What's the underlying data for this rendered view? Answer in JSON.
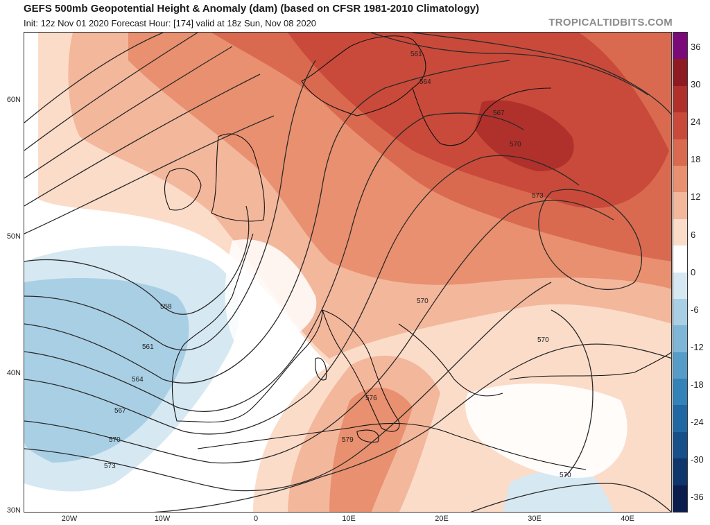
{
  "header": {
    "title": "GEFS 500mb Geopotential Height & Anomaly (dam) (based on CFSR 1981-2010 Climatology)",
    "subtitle": "Init: 12z Nov 01 2020   Forecast Hour: [174]   valid at 18z Sun, Nov 08 2020",
    "brand": "TROPICALTIDBITS.COM"
  },
  "axes": {
    "lat_labels": [
      "60N",
      "50N",
      "40N",
      "30N"
    ],
    "lon_labels": [
      "20W",
      "10W",
      "0",
      "10E",
      "20E",
      "30E",
      "40E"
    ]
  },
  "contours": {
    "labels": [
      "558",
      "561",
      "564",
      "561",
      "564",
      "567",
      "570",
      "573",
      "567",
      "570",
      "573",
      "570",
      "570",
      "576",
      "579",
      "570"
    ]
  },
  "colorbar": {
    "labels": [
      "36",
      "30",
      "24",
      "18",
      "12",
      "6",
      "0",
      "-6",
      "-12",
      "-18",
      "-24",
      "-30",
      "-36"
    ],
    "colors": [
      "#7a0a7a",
      "#8e1a22",
      "#b0302b",
      "#c94a3a",
      "#d96a50",
      "#e8906f",
      "#f3b79c",
      "#fbdcc9",
      "#ffffff",
      "#d6e8f2",
      "#a9cfe4",
      "#7fb6d7",
      "#559cc8",
      "#3382b8",
      "#1f68a4",
      "#164f8a",
      "#0e356c",
      "#0b1d4d"
    ]
  }
}
